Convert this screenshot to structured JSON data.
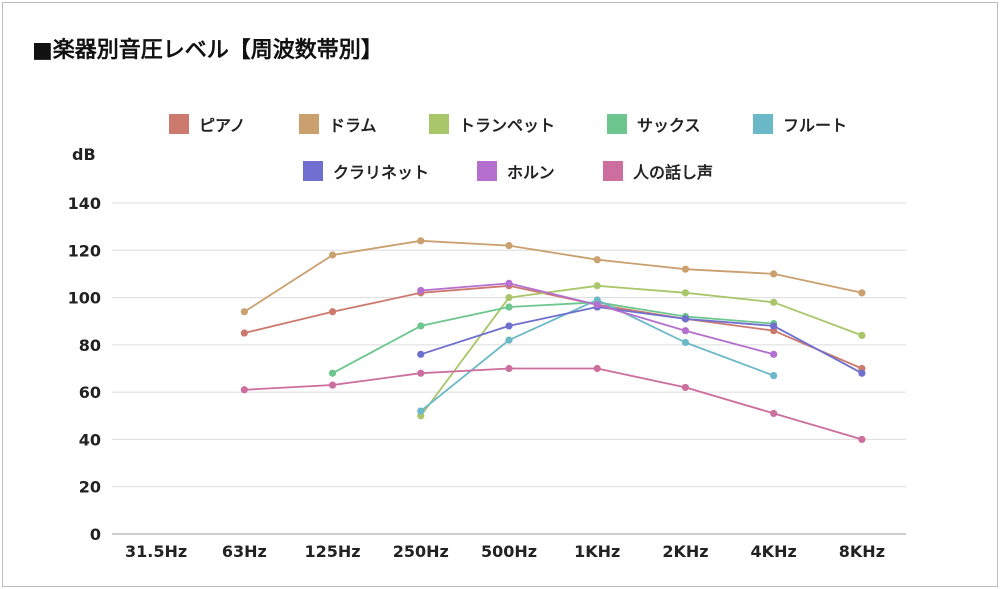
{
  "chart_data": {
    "type": "line",
    "title": "■楽器別音圧レベル【周波数帯別】",
    "ylabel": "dB",
    "xlabel": "",
    "ylim": [
      0,
      140
    ],
    "yticks": [
      0,
      20,
      40,
      60,
      80,
      100,
      120,
      140
    ],
    "categories": [
      "31.5Hz",
      "63Hz",
      "125Hz",
      "250Hz",
      "500Hz",
      "1KHz",
      "2KHz",
      "4KHz",
      "8KHz"
    ],
    "grid": "horizontal",
    "legend_position": "top",
    "series": [
      {
        "name": "ピアノ",
        "color": "#cc7a6e",
        "values": [
          null,
          85,
          94,
          102,
          105,
          97,
          91,
          86,
          70
        ]
      },
      {
        "name": "ドラム",
        "color": "#c9a06e",
        "values": [
          null,
          94,
          118,
          124,
          122,
          116,
          112,
          110,
          102
        ]
      },
      {
        "name": "トランペット",
        "color": "#a9c66a",
        "values": [
          null,
          null,
          null,
          50,
          100,
          105,
          102,
          98,
          84
        ]
      },
      {
        "name": "サックス",
        "color": "#6cc68e",
        "values": [
          null,
          null,
          68,
          88,
          96,
          98,
          92,
          89,
          null
        ]
      },
      {
        "name": "フルート",
        "color": "#6bb8c8",
        "values": [
          null,
          null,
          null,
          52,
          82,
          99,
          81,
          67,
          null
        ]
      },
      {
        "name": "クラリネット",
        "color": "#6f6fcf",
        "values": [
          null,
          null,
          null,
          76,
          88,
          96,
          91,
          88,
          68
        ]
      },
      {
        "name": "ホルン",
        "color": "#b56fcf",
        "values": [
          null,
          null,
          null,
          103,
          106,
          97,
          86,
          76,
          null
        ]
      },
      {
        "name": "人の話し声",
        "color": "#cc6e9e",
        "values": [
          null,
          61,
          63,
          68,
          70,
          70,
          62,
          51,
          40
        ]
      }
    ]
  }
}
